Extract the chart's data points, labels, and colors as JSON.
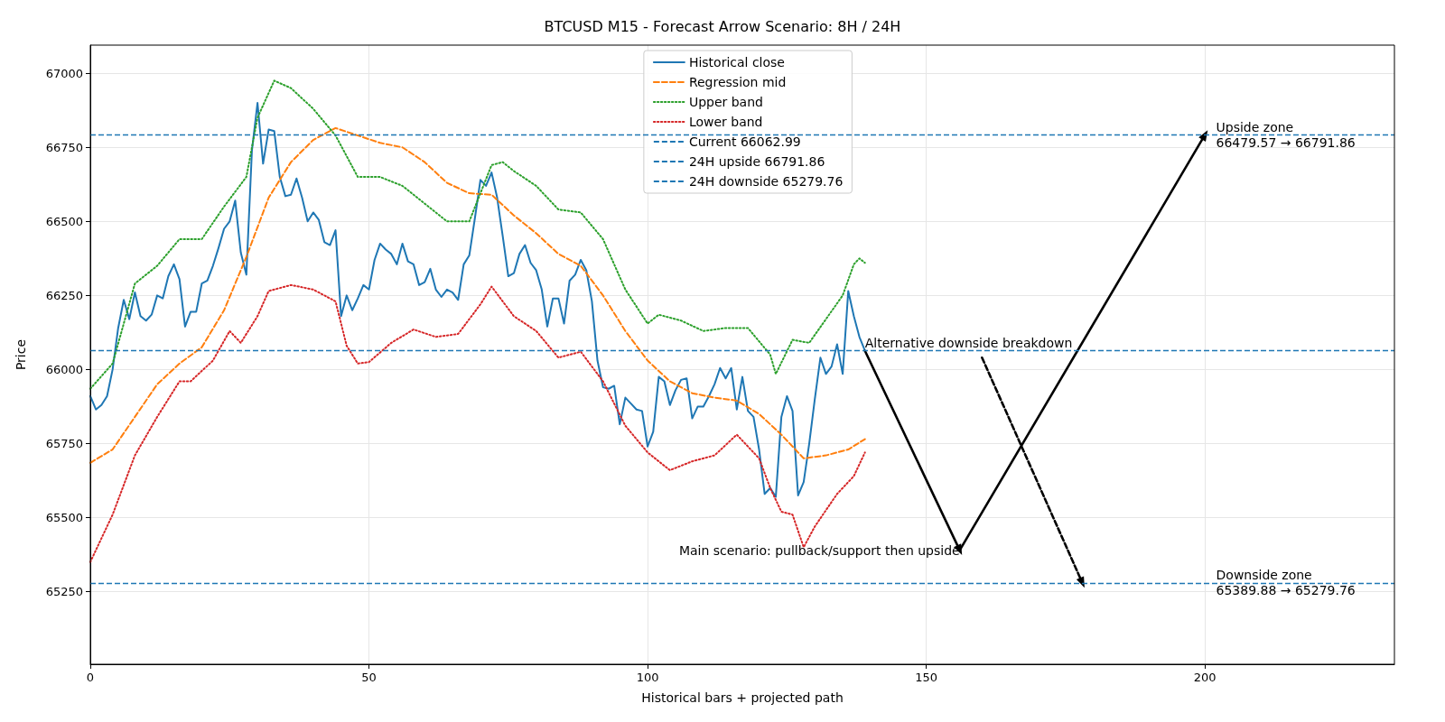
{
  "chart_data": {
    "type": "line",
    "title": "BTCUSD M15 - Forecast Arrow Scenario: 8H / 24H",
    "xlabel": "Historical bars + projected path",
    "ylabel": "Price",
    "xlim": [
      0,
      234
    ],
    "xticks": [
      0,
      50,
      100,
      150,
      200
    ],
    "ylim": [
      65005,
      67095
    ],
    "yticks": [
      65250,
      65500,
      65750,
      66000,
      66250,
      66500,
      66750,
      67000
    ],
    "grid": true,
    "legend": "top",
    "series": [
      {
        "name": "Historical close",
        "color": "#1f77b4",
        "line_style": "solid",
        "x": [
          0,
          1,
          2,
          3,
          4,
          5,
          6,
          7,
          8,
          9,
          10,
          11,
          12,
          13,
          14,
          15,
          16,
          17,
          18,
          19,
          20,
          21,
          22,
          23,
          24,
          25,
          26,
          27,
          28,
          29,
          30,
          31,
          32,
          33,
          34,
          35,
          36,
          37,
          38,
          39,
          40,
          41,
          42,
          43,
          44,
          45,
          46,
          47,
          48,
          49,
          50,
          51,
          52,
          53,
          54,
          55,
          56,
          57,
          58,
          59,
          60,
          61,
          62,
          63,
          64,
          65,
          66,
          67,
          68,
          69,
          70,
          71,
          72,
          73,
          74,
          75,
          76,
          77,
          78,
          79,
          80,
          81,
          82,
          83,
          84,
          85,
          86,
          87,
          88,
          89,
          90,
          91,
          92,
          93,
          94,
          95,
          96,
          97,
          98,
          99,
          100,
          101,
          102,
          103,
          104,
          105,
          106,
          107,
          108,
          109,
          110,
          111,
          112,
          113,
          114,
          115,
          116,
          117,
          118,
          119,
          120,
          121,
          122,
          123,
          124,
          125,
          126,
          127,
          128,
          129,
          130,
          131,
          132,
          133,
          134,
          135,
          136,
          137,
          138,
          139
        ],
        "values": [
          65910,
          65865,
          65880,
          65910,
          66000,
          66140,
          66235,
          66170,
          66260,
          66180,
          66165,
          66185,
          66250,
          66240,
          66315,
          66355,
          66305,
          66145,
          66195,
          66195,
          66290,
          66300,
          66350,
          66410,
          66475,
          66500,
          66570,
          66395,
          66320,
          66740,
          66900,
          66695,
          66810,
          66805,
          66650,
          66585,
          66590,
          66645,
          66580,
          66500,
          66530,
          66505,
          66430,
          66420,
          66470,
          66180,
          66250,
          66200,
          66240,
          66285,
          66270,
          66370,
          66425,
          66405,
          66390,
          66355,
          66425,
          66365,
          66355,
          66285,
          66295,
          66340,
          66270,
          66245,
          66270,
          66260,
          66235,
          66355,
          66385,
          66510,
          66640,
          66620,
          66665,
          66580,
          66450,
          66315,
          66325,
          66390,
          66420,
          66360,
          66335,
          66270,
          66145,
          66240,
          66240,
          66155,
          66300,
          66320,
          66370,
          66335,
          66230,
          66030,
          65940,
          65935,
          65945,
          65815,
          65905,
          65885,
          65865,
          65860,
          65740,
          65790,
          65975,
          65960,
          65880,
          65930,
          65965,
          65970,
          65835,
          65875,
          65875,
          65910,
          65950,
          66005,
          65970,
          66005,
          65865,
          65975,
          65860,
          65840,
          65730,
          65580,
          65600,
          65570,
          65840,
          65910,
          65860,
          65575,
          65620,
          65750,
          65900,
          66040,
          65985,
          66010,
          66085,
          65985,
          66265,
          66180,
          66110,
          66063
        ]
      },
      {
        "name": "Regression mid",
        "color": "#ff7f0e",
        "line_style": "dashed",
        "x": [
          0,
          4,
          8,
          12,
          16,
          20,
          24,
          28,
          32,
          36,
          40,
          44,
          48,
          52,
          56,
          60,
          64,
          68,
          72,
          76,
          80,
          84,
          88,
          92,
          96,
          100,
          104,
          108,
          112,
          116,
          120,
          124,
          128,
          132,
          136,
          139
        ],
        "values": [
          65685,
          65730,
          65840,
          65950,
          66020,
          66075,
          66200,
          66380,
          66580,
          66700,
          66775,
          66815,
          66790,
          66765,
          66750,
          66700,
          66630,
          66595,
          66590,
          66520,
          66460,
          66390,
          66350,
          66250,
          66130,
          66030,
          65960,
          65920,
          65905,
          65895,
          65850,
          65780,
          65700,
          65710,
          65730,
          65765
        ]
      },
      {
        "name": "Upper band",
        "color": "#2ca02c",
        "line_style": "dotted",
        "x": [
          0,
          4,
          8,
          12,
          16,
          20,
          24,
          28,
          30,
          33,
          36,
          40,
          44,
          48,
          52,
          56,
          60,
          64,
          68,
          72,
          74,
          76,
          80,
          84,
          88,
          92,
          96,
          100,
          102,
          106,
          110,
          114,
          118,
          122,
          123,
          126,
          129,
          132,
          135,
          137,
          138,
          139
        ],
        "values": [
          65935,
          66020,
          66290,
          66350,
          66440,
          66440,
          66550,
          66650,
          66850,
          66975,
          66950,
          66880,
          66790,
          66650,
          66650,
          66620,
          66560,
          66500,
          66500,
          66690,
          66700,
          66670,
          66620,
          66540,
          66530,
          66440,
          66270,
          66155,
          66185,
          66165,
          66130,
          66140,
          66140,
          66050,
          65985,
          66100,
          66090,
          66170,
          66250,
          66355,
          66375,
          66360
        ]
      },
      {
        "name": "Lower band",
        "color": "#d62728",
        "line_style": "dotted",
        "x": [
          0,
          4,
          8,
          12,
          16,
          18,
          22,
          25,
          27,
          30,
          32,
          36,
          40,
          44,
          46,
          48,
          50,
          54,
          58,
          62,
          66,
          70,
          72,
          74,
          76,
          80,
          84,
          88,
          92,
          96,
          100,
          104,
          108,
          112,
          116,
          120,
          122,
          124,
          126,
          128,
          130,
          134,
          137,
          139
        ],
        "values": [
          65350,
          65510,
          65710,
          65840,
          65960,
          65960,
          66030,
          66130,
          66090,
          66180,
          66265,
          66285,
          66270,
          66230,
          66080,
          66020,
          66025,
          66090,
          66135,
          66110,
          66120,
          66220,
          66280,
          66230,
          66180,
          66130,
          66040,
          66060,
          65960,
          65810,
          65720,
          65660,
          65690,
          65710,
          65780,
          65700,
          65600,
          65520,
          65510,
          65400,
          65470,
          65580,
          65640,
          65720
        ]
      },
      {
        "color": "#000000",
        "line_style": "solid",
        "marker": "triangle",
        "x": [
          139,
          156,
          200
        ],
        "values": [
          66063,
          65390,
          66792
        ]
      },
      {
        "color": "#000000",
        "line_style": "dashed",
        "marker": "triangle",
        "x": [
          160,
          178
        ],
        "values": [
          66040,
          65280
        ]
      }
    ],
    "ref_lines": [
      {
        "axis": "y",
        "value": 66062.99,
        "label": "Current 66062.99",
        "color": "#1f77b4",
        "line_style": "dashed"
      },
      {
        "axis": "y",
        "value": 66791.86,
        "label": "24H upside 66791.86",
        "color": "#1f77b4",
        "line_style": "dashed"
      },
      {
        "axis": "y",
        "value": 65279.76,
        "label": "24H downside 65279.76",
        "color": "#1f77b4",
        "line_style": "dashed"
      }
    ],
    "annotations": [
      {
        "text": "Alternative downside breakdown",
        "x": 139,
        "y": 66063
      },
      {
        "text": "Main scenario: pullback/support then upside",
        "x": 156,
        "y": 65390
      },
      {
        "text": "Upside zone\n66479.57 → 66791.86",
        "x": 202,
        "y": 66791.86
      },
      {
        "text": "Downside zone\n65389.88 → 65279.76",
        "x": 202,
        "y": 65280
      }
    ]
  }
}
